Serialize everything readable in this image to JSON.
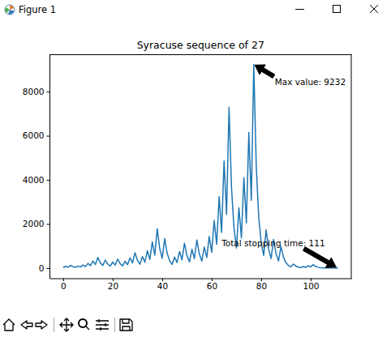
{
  "window": {
    "title": "Figure 1"
  },
  "chart_data": {
    "type": "line",
    "title": "Syracuse sequence of 27",
    "x": [
      0,
      1,
      2,
      3,
      4,
      5,
      6,
      7,
      8,
      9,
      10,
      11,
      12,
      13,
      14,
      15,
      16,
      17,
      18,
      19,
      20,
      21,
      22,
      23,
      24,
      25,
      26,
      27,
      28,
      29,
      30,
      31,
      32,
      33,
      34,
      35,
      36,
      37,
      38,
      39,
      40,
      41,
      42,
      43,
      44,
      45,
      46,
      47,
      48,
      49,
      50,
      51,
      52,
      53,
      54,
      55,
      56,
      57,
      58,
      59,
      60,
      61,
      62,
      63,
      64,
      65,
      66,
      67,
      68,
      69,
      70,
      71,
      72,
      73,
      74,
      75,
      76,
      77,
      78,
      79,
      80,
      81,
      82,
      83,
      84,
      85,
      86,
      87,
      88,
      89,
      90,
      91,
      92,
      93,
      94,
      95,
      96,
      97,
      98,
      99,
      100,
      101,
      102,
      103,
      104,
      105,
      106,
      107,
      108,
      109,
      110,
      111
    ],
    "values": [
      27,
      82,
      41,
      124,
      62,
      31,
      94,
      47,
      142,
      71,
      214,
      107,
      322,
      161,
      484,
      242,
      121,
      364,
      182,
      91,
      274,
      137,
      412,
      206,
      103,
      310,
      155,
      466,
      233,
      700,
      350,
      175,
      526,
      263,
      790,
      395,
      1186,
      593,
      1780,
      890,
      445,
      1336,
      668,
      334,
      167,
      502,
      251,
      754,
      377,
      1132,
      566,
      283,
      850,
      425,
      1276,
      638,
      319,
      958,
      479,
      1438,
      719,
      2158,
      1079,
      3238,
      1619,
      4858,
      2429,
      7288,
      3644,
      1822,
      911,
      2734,
      1367,
      4102,
      2051,
      6154,
      3077,
      9232,
      4616,
      2308,
      1154,
      577,
      1732,
      866,
      433,
      1300,
      650,
      325,
      976,
      488,
      244,
      122,
      61,
      184,
      92,
      46,
      23,
      70,
      35,
      106,
      53,
      160,
      80,
      40,
      20,
      10,
      5,
      16,
      8,
      4,
      2,
      1
    ],
    "color": "#1f77b4",
    "xlim": [
      -5.55,
      116.55
    ],
    "xticks": [
      0,
      20,
      40,
      60,
      80,
      100
    ],
    "ylim": [
      -460.55,
      9693.55
    ],
    "yticks": [
      0,
      2000,
      4000,
      6000,
      8000
    ],
    "grid": false,
    "annotations": [
      {
        "text": "Max value: 9232",
        "x": 77,
        "y": 9232,
        "text_x": 85.5,
        "text_y": 8300
      },
      {
        "text": "Total stopping time: 111",
        "x": 111,
        "y": 1,
        "text_x": 64,
        "text_y": 1000
      }
    ]
  }
}
